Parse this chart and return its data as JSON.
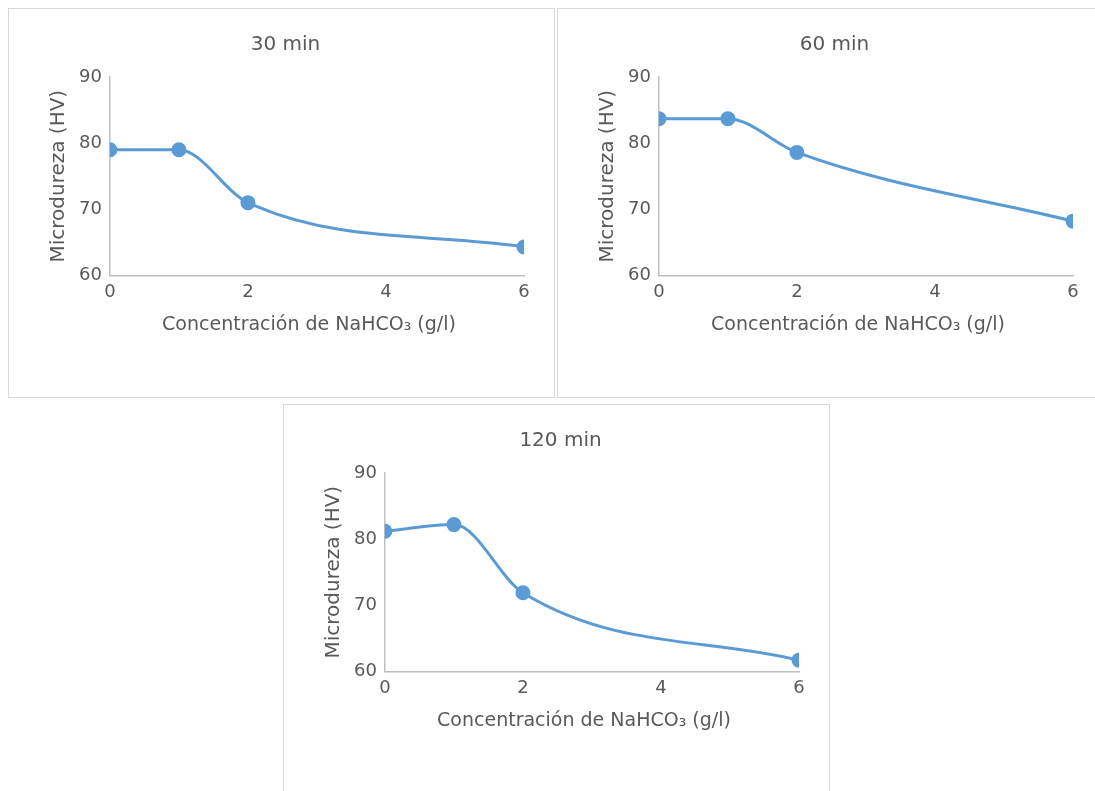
{
  "chart_data": [
    {
      "type": "line",
      "title": "30 min",
      "xlabel": "Concentración de NaHCO₃ (g/l)",
      "ylabel": "Microdureza (HV)",
      "x": [
        0,
        1,
        2,
        6
      ],
      "values": [
        79,
        79,
        71,
        64.3
      ],
      "color": "#5b9bd5",
      "marker": "circle",
      "xlim": [
        0,
        6
      ],
      "xticks": [
        0,
        2,
        4,
        6
      ],
      "ylim": [
        60,
        90
      ],
      "yticks": [
        60,
        70,
        80,
        90
      ]
    },
    {
      "type": "line",
      "title": "60 min",
      "xlabel": "Concentración de NaHCO₃ (g/l)",
      "ylabel": "Microdureza (HV)",
      "x": [
        0,
        1,
        2,
        6
      ],
      "values": [
        83.7,
        83.7,
        78.6,
        68.2
      ],
      "color": "#5b9bd5",
      "marker": "circle",
      "xlim": [
        0,
        6
      ],
      "xticks": [
        0,
        2,
        4,
        6
      ],
      "ylim": [
        60,
        90
      ],
      "yticks": [
        60,
        70,
        80,
        90
      ]
    },
    {
      "type": "line",
      "title": "120 min",
      "xlabel": "Concentración de NaHCO₃ (g/l)",
      "ylabel": "Microdureza (HV)",
      "x": [
        0,
        1,
        2,
        6
      ],
      "values": [
        81.2,
        82.2,
        71.9,
        61.7
      ],
      "color": "#5b9bd5",
      "marker": "circle",
      "xlim": [
        0,
        6
      ],
      "xticks": [
        0,
        2,
        4,
        6
      ],
      "ylim": [
        60,
        90
      ],
      "yticks": [
        60,
        70,
        80,
        90
      ]
    }
  ]
}
